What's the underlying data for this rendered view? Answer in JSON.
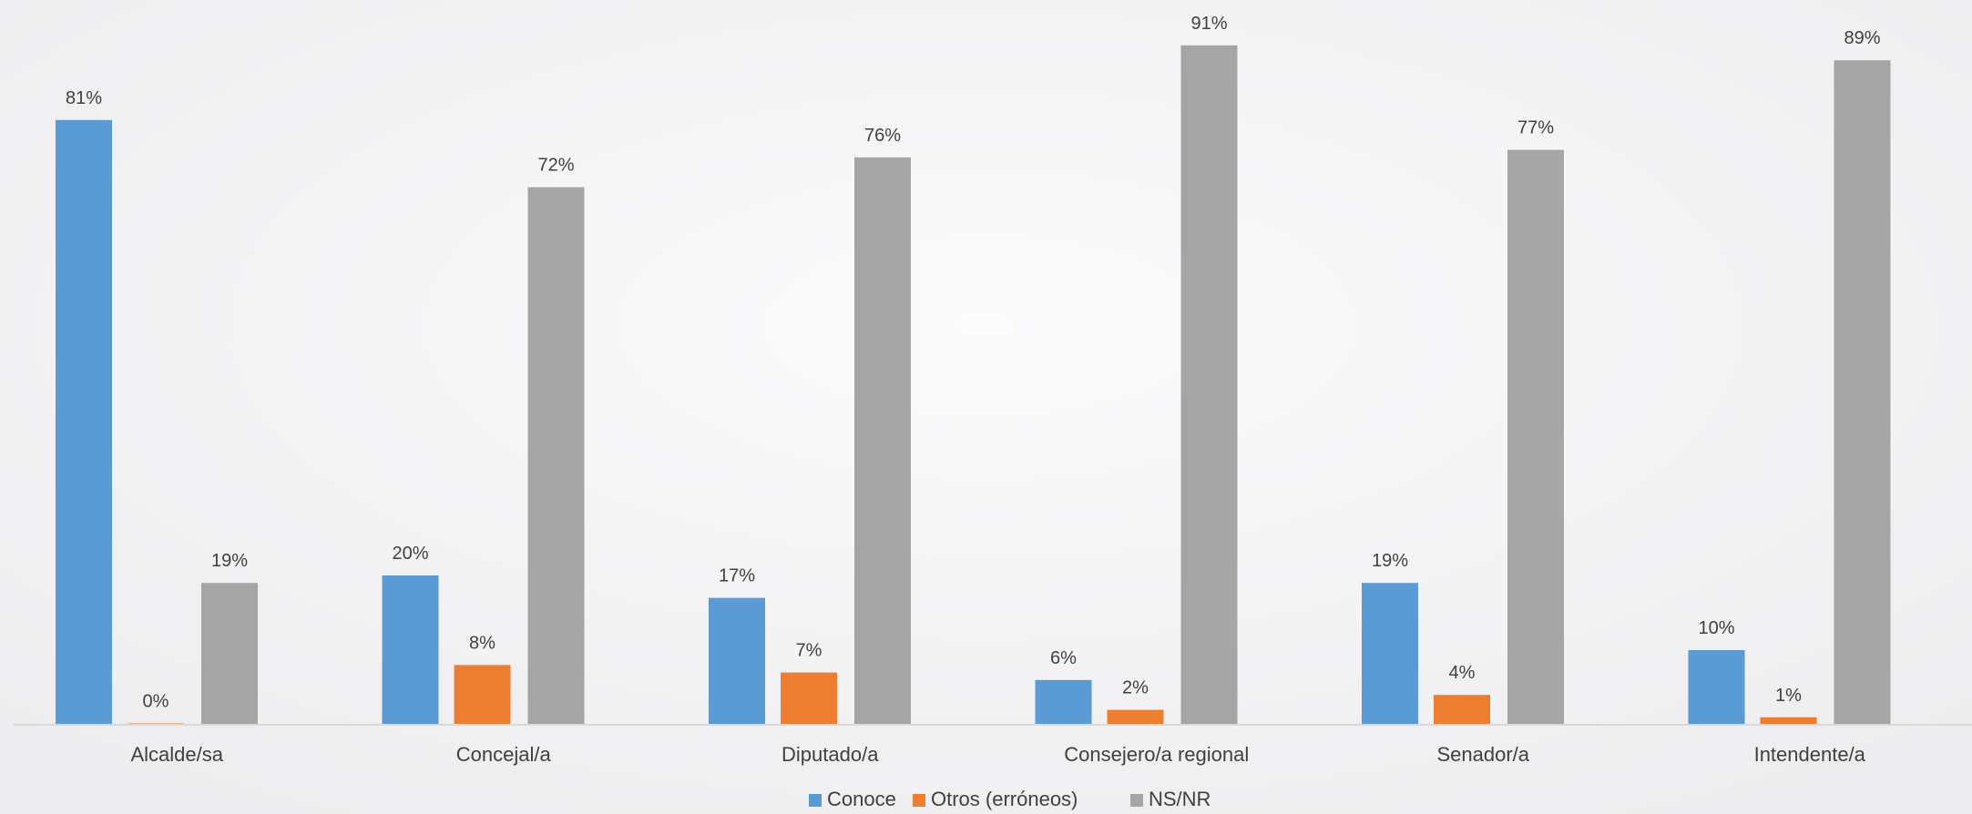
{
  "chart_data": {
    "type": "bar",
    "categories": [
      "Alcalde/sa",
      "Concejal/a",
      "Diputado/a",
      "Consejero/a regional",
      "Senador/a",
      "Intendente/a"
    ],
    "series": [
      {
        "name": "Conoce",
        "values": [
          81,
          20,
          17,
          6,
          19,
          10
        ],
        "labels": [
          "81%",
          "20%",
          "17%",
          "6%",
          "19%",
          "10%"
        ],
        "color": "#5b9bd5"
      },
      {
        "name": "Otros (erróneos)",
        "values": [
          0,
          8,
          7,
          2,
          4,
          1
        ],
        "labels": [
          "0%",
          "8%",
          "7%",
          "2%",
          "4%",
          "1%"
        ],
        "color": "#ed7d31"
      },
      {
        "name": "NS/NR",
        "values": [
          19,
          72,
          76,
          91,
          77,
          89
        ],
        "labels": [
          "19%",
          "72%",
          "76%",
          "91%",
          "77%",
          "89%"
        ],
        "color": "#a5a5a5"
      }
    ],
    "ylim": [
      0,
      100
    ],
    "legend_position": "bottom",
    "grid": false,
    "axis_line_color": "#d9d9d9"
  }
}
